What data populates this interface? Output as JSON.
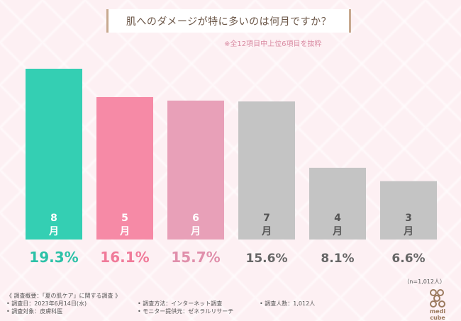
{
  "title": "肌へのダメージが特に多いのは何月ですか？",
  "note": "※全12項目中上位6項目を抜粋",
  "n_label": "（n=1,012人）",
  "footer": {
    "heading": "《 調査概要：「夏の肌ケア」に関する調査 》",
    "date": "• 調査日：2023年6月14日(水)",
    "method": "• 調査方法：インターネット調査",
    "count": "• 調査人数：1,012人",
    "target": "• 調査対象：皮膚科医",
    "provider": "• モニター提供元：ゼネラルリサーチ"
  },
  "logo_text": "medi cube",
  "colors": {
    "teal": "#34cfb3",
    "pink": "#f68aa6",
    "light_pink": "#e8a0b8",
    "gray": "#c4c4c4",
    "bg": "#fdf0f3"
  },
  "chart_data": {
    "type": "bar",
    "categories": [
      "8月",
      "5月",
      "6月",
      "7月",
      "4月",
      "3月"
    ],
    "values": [
      19.3,
      16.1,
      15.7,
      15.6,
      8.1,
      6.6
    ],
    "value_labels": [
      "19.3%",
      "16.1%",
      "15.7%",
      "15.6%",
      "8.1%",
      "6.6%"
    ],
    "category_parts": [
      [
        "8",
        "月"
      ],
      [
        "5",
        "月"
      ],
      [
        "6",
        "月"
      ],
      [
        "7",
        "月"
      ],
      [
        "4",
        "月"
      ],
      [
        "3",
        "月"
      ]
    ],
    "bar_colors": [
      "#34cfb3",
      "#f68aa6",
      "#e8a0b8",
      "#c4c4c4",
      "#c4c4c4",
      "#c4c4c4"
    ],
    "label_colors": [
      "#2cc1a7",
      "#f07a99",
      "#e08fab",
      "#666666",
      "#666666",
      "#666666"
    ],
    "ylim": [
      0,
      19.3
    ],
    "grid": false,
    "legend": "none"
  }
}
